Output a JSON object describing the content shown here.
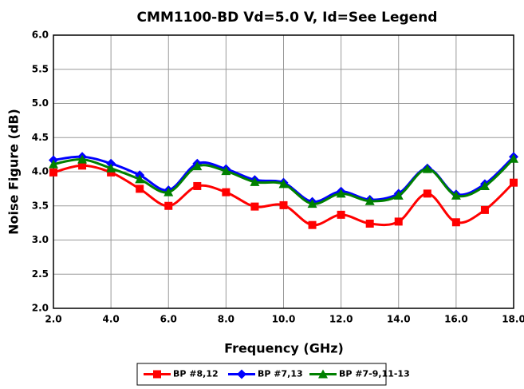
{
  "chart_data": {
    "type": "line",
    "title": "CMM1100-BD Vd=5.0 V, Id=See Legend",
    "xlabel": "Frequency (GHz)",
    "ylabel": "Noise Figure (dB)",
    "x": [
      2,
      3,
      4,
      5,
      6,
      7,
      8,
      9,
      10,
      11,
      12,
      13,
      14,
      15,
      16,
      17,
      18
    ],
    "series": [
      {
        "name": "BP #8,12",
        "color": "#ff0000",
        "marker": "square",
        "values": [
          3.99,
          4.09,
          3.99,
          3.75,
          3.5,
          3.79,
          3.7,
          3.49,
          3.51,
          3.22,
          3.37,
          3.24,
          3.27,
          3.68,
          3.26,
          3.44,
          3.84
        ]
      },
      {
        "name": "BP #7,13",
        "color": "#0000ff",
        "marker": "diamond",
        "values": [
          4.17,
          4.22,
          4.12,
          3.95,
          3.73,
          4.12,
          4.04,
          3.88,
          3.84,
          3.56,
          3.71,
          3.59,
          3.68,
          4.05,
          3.67,
          3.82,
          4.22
        ]
      },
      {
        "name": "BP #7-9,11-13",
        "color": "#008000",
        "marker": "triangle",
        "values": [
          4.11,
          4.18,
          4.05,
          3.89,
          3.7,
          4.08,
          4.01,
          3.85,
          3.82,
          3.53,
          3.68,
          3.57,
          3.65,
          4.04,
          3.65,
          3.79,
          4.19
        ]
      }
    ],
    "xlim": [
      2,
      18
    ],
    "xticks": [
      {
        "value": 2,
        "label": "2.0"
      },
      {
        "value": 4,
        "label": "4.0"
      },
      {
        "value": 6,
        "label": "6.0"
      },
      {
        "value": 8,
        "label": "8.0"
      },
      {
        "value": 10,
        "label": "10.0"
      },
      {
        "value": 12,
        "label": "12.0"
      },
      {
        "value": 14,
        "label": "14.0"
      },
      {
        "value": 16,
        "label": "16.0"
      },
      {
        "value": 18,
        "label": "18.0"
      }
    ],
    "ylim": [
      2,
      6
    ],
    "yticks": [
      {
        "value": 2,
        "label": "2.0"
      },
      {
        "value": 2.5,
        "label": "2.5"
      },
      {
        "value": 3,
        "label": "3.0"
      },
      {
        "value": 3.5,
        "label": "3.5"
      },
      {
        "value": 4,
        "label": "4.0"
      },
      {
        "value": 4.5,
        "label": "4.5"
      },
      {
        "value": 5,
        "label": "5.0"
      },
      {
        "value": 5.5,
        "label": "5.5"
      },
      {
        "value": 6,
        "label": "6.0"
      }
    ],
    "grid": true,
    "legend": "bottom"
  }
}
